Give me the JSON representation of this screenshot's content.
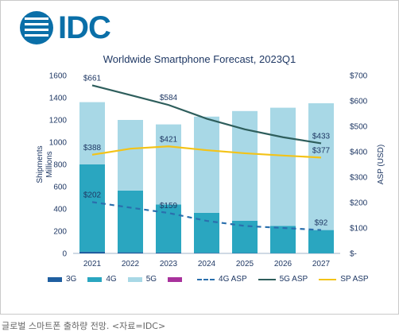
{
  "brand": {
    "logo_text": "IDC"
  },
  "caption": "글로벌 스마트폰 출하량 전망. <자료=IDC>",
  "chart_data": {
    "type": "bar",
    "title": "Worldwide Smartphone Forecast, 2023Q1",
    "categories": [
      "2021",
      "2022",
      "2023",
      "2024",
      "2025",
      "2026",
      "2027"
    ],
    "ylabel": "Shipments Millions",
    "y2label": "ASP (USD)",
    "ylim": [
      0,
      1600
    ],
    "y2lim": [
      0,
      700
    ],
    "yticks": [
      "0",
      "200",
      "400",
      "600",
      "800",
      "1000",
      "1200",
      "1400",
      "1600"
    ],
    "y2ticks": [
      "$-",
      "$100",
      "$200",
      "$300",
      "$400",
      "$500",
      "$600",
      "$700"
    ],
    "grid": false,
    "legend_position": "bottom",
    "stacked_series": [
      {
        "name": "3G",
        "color": "#1f5fa0",
        "values": [
          15,
          10,
          8,
          5,
          3,
          2,
          1
        ]
      },
      {
        "name": "4G",
        "color": "#2aa6c0",
        "values": [
          785,
          555,
          432,
          360,
          290,
          245,
          209
        ]
      },
      {
        "name": "5G",
        "color": "#a8d8e6",
        "values": [
          560,
          635,
          720,
          865,
          987,
          1063,
          1140
        ]
      },
      {
        "name": "",
        "color": "#a8329c",
        "values": [
          0,
          0,
          0,
          0,
          0,
          0,
          0
        ]
      }
    ],
    "line_series": [
      {
        "name": "4G ASP",
        "color": "#2a6fad",
        "dashed": true,
        "values": [
          202,
          180,
          159,
          128,
          108,
          100,
          92
        ]
      },
      {
        "name": "5G ASP",
        "color": "#2e5e5c",
        "dashed": false,
        "values": [
          661,
          623,
          584,
          530,
          488,
          457,
          433
        ]
      },
      {
        "name": "SP ASP",
        "color": "#f3c318",
        "dashed": false,
        "values": [
          388,
          412,
          421,
          406,
          394,
          385,
          377
        ]
      }
    ],
    "data_labels": [
      {
        "series": "5G ASP",
        "index": 0,
        "text": "$661"
      },
      {
        "series": "5G ASP",
        "index": 2,
        "text": "$584"
      },
      {
        "series": "5G ASP",
        "index": 6,
        "text": "$433"
      },
      {
        "series": "SP ASP",
        "index": 0,
        "text": "$388"
      },
      {
        "series": "SP ASP",
        "index": 2,
        "text": "$421"
      },
      {
        "series": "SP ASP",
        "index": 6,
        "text": "$377"
      },
      {
        "series": "4G ASP",
        "index": 0,
        "text": "$202"
      },
      {
        "series": "4G ASP",
        "index": 2,
        "text": "$159"
      },
      {
        "series": "4G ASP",
        "index": 6,
        "text": "$92"
      }
    ],
    "legend": [
      {
        "label": "3G",
        "kind": "bar",
        "color": "#1f5fa0"
      },
      {
        "label": "4G",
        "kind": "bar",
        "color": "#2aa6c0"
      },
      {
        "label": "5G",
        "kind": "bar",
        "color": "#a8d8e6"
      },
      {
        "label": "",
        "kind": "bar",
        "color": "#a8329c"
      },
      {
        "label": "4G ASP",
        "kind": "dashed-line",
        "color": "#2a6fad"
      },
      {
        "label": "5G ASP",
        "kind": "line",
        "color": "#2e5e5c"
      },
      {
        "label": "SP ASP",
        "kind": "line",
        "color": "#f3c318"
      }
    ]
  }
}
